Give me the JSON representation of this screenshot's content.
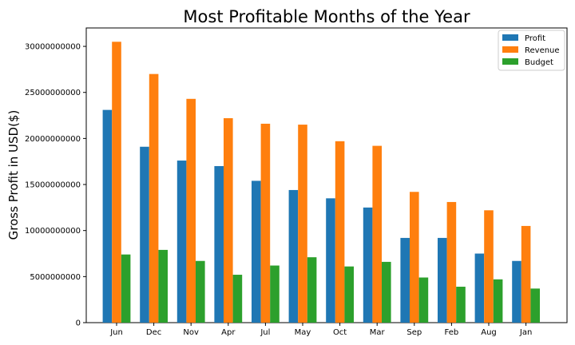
{
  "chart_data": {
    "type": "bar",
    "title": "Most Profitable Months of the Year",
    "xlabel": "",
    "ylabel": "Gross Profit in USD($)",
    "categories": [
      "Jun",
      "Dec",
      "Nov",
      "Apr",
      "Jul",
      "May",
      "Oct",
      "Mar",
      "Sep",
      "Feb",
      "Aug",
      "Jan"
    ],
    "series": [
      {
        "name": "Profit",
        "color": "#1f77b4",
        "values": [
          23100000000,
          19100000000,
          17600000000,
          17000000000,
          15400000000,
          14400000000,
          13500000000,
          12500000000,
          9200000000,
          9200000000,
          7500000000,
          6700000000
        ]
      },
      {
        "name": "Revenue",
        "color": "#ff7f0e",
        "values": [
          30500000000,
          27000000000,
          24300000000,
          22200000000,
          21600000000,
          21500000000,
          19700000000,
          19200000000,
          14200000000,
          13100000000,
          12200000000,
          10500000000
        ]
      },
      {
        "name": "Budget",
        "color": "#2ca02c",
        "values": [
          7400000000,
          7900000000,
          6700000000,
          5200000000,
          6200000000,
          7100000000,
          6100000000,
          6600000000,
          4900000000,
          3900000000,
          4700000000,
          3700000000
        ]
      }
    ],
    "yticks": [
      "0",
      "5000000000",
      "10000000000",
      "15000000000",
      "20000000000",
      "25000000000",
      "30000000000"
    ],
    "ylim": [
      0,
      32000000000
    ],
    "legend": "top-right",
    "grid": false
  }
}
